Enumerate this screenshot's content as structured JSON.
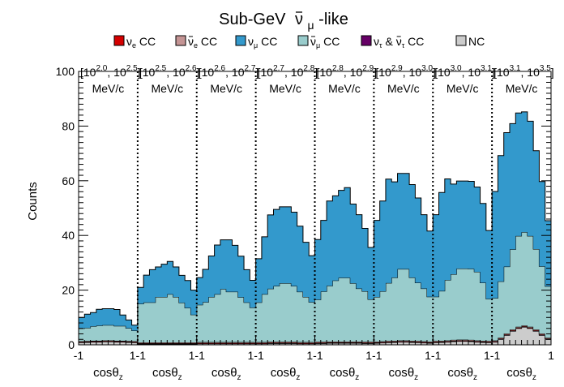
{
  "chart_data": {
    "type": "area",
    "title": {
      "base": "Sub-GeV",
      "nu": "ν",
      "sub": "μ",
      "suffix": "-like"
    },
    "ylabel": "Counts",
    "ylim": [
      0,
      100
    ],
    "y_ticks": [
      "0",
      "20",
      "40",
      "60",
      "80",
      "100"
    ],
    "legend_placement": "top",
    "legend": [
      {
        "name": "νe CC",
        "sym": "ν",
        "sub": "e",
        "bar": false,
        "color": "#d40000"
      },
      {
        "name": "ν̄e CC",
        "sym": "ν",
        "sub": "e",
        "bar": true,
        "color": "#c49494"
      },
      {
        "name": "νμ CC",
        "sym": "ν",
        "sub": "μ",
        "bar": false,
        "color": "#3399cc"
      },
      {
        "name": "ν̄μ CC",
        "sym": "ν",
        "sub": "μ",
        "bar": true,
        "color": "#99cccc"
      },
      {
        "name": "ντ & ν̄τ CC",
        "sym": "ν",
        "sub": "τ",
        "bar": false,
        "amp": "&",
        "color": "#660066"
      },
      {
        "name": "NC",
        "sym": "NC",
        "sub": "",
        "bar": false,
        "color": "#cccccc"
      }
    ],
    "panels": [
      {
        "range": "[10^2.0, 10^2.5]",
        "lo_base": "10",
        "lo_exp": "2.0",
        "hi_base": "10",
        "hi_exp": "2.5",
        "unit": "MeV/c"
      },
      {
        "range": "[10^2.5, 10^2.6]",
        "lo_base": "10",
        "lo_exp": "2.5",
        "hi_base": "10",
        "hi_exp": "2.6",
        "unit": "MeV/c"
      },
      {
        "range": "[10^2.6, 10^2.7]",
        "lo_base": "10",
        "lo_exp": "2.6",
        "hi_base": "10",
        "hi_exp": "2.7",
        "unit": "MeV/c"
      },
      {
        "range": "[10^2.7, 10^2.8]",
        "lo_base": "10",
        "lo_exp": "2.7",
        "hi_base": "10",
        "hi_exp": "2.8",
        "unit": "MeV/c"
      },
      {
        "range": "[10^2.8, 10^2.9]",
        "lo_base": "10",
        "lo_exp": "2.8",
        "hi_base": "10",
        "hi_exp": "2.9",
        "unit": "MeV/c"
      },
      {
        "range": "[10^2.9, 10^3.0]",
        "lo_base": "10",
        "lo_exp": "2.9",
        "hi_base": "10",
        "hi_exp": "3.0",
        "unit": "MeV/c"
      },
      {
        "range": "[10^3.0, 10^3.1]",
        "lo_base": "10",
        "lo_exp": "3.0",
        "hi_base": "10",
        "hi_exp": "3.1",
        "unit": "MeV/c"
      },
      {
        "range": "[10^3.1, 10^3.5]",
        "lo_base": "10",
        "lo_exp": "3.1",
        "hi_base": "10",
        "hi_exp": "3.5",
        "unit": "MeV/c"
      }
    ],
    "x_ticks": [
      "-1",
      "1-1",
      "1-1",
      "1-1",
      "1-1",
      "1-1",
      "1-1",
      "1-1",
      "1"
    ],
    "xlabel": {
      "text": "cos",
      "theta": "θ",
      "sub": "z"
    },
    "bins_per_panel": 10,
    "series": [
      {
        "name": "NC",
        "color": "#cccccc",
        "values": [
          [
            0.8,
            0.9,
            1.0,
            1.0,
            1.1,
            1.1,
            1.0,
            1.0,
            0.9,
            0.8
          ],
          [
            0.3,
            0.3,
            0.3,
            0.3,
            0.3,
            0.3,
            0.3,
            0.3,
            0.3,
            0.3
          ],
          [
            0.4,
            0.4,
            0.4,
            0.4,
            0.4,
            0.4,
            0.4,
            0.4,
            0.4,
            0.4
          ],
          [
            0.4,
            0.4,
            0.5,
            0.5,
            0.5,
            0.5,
            0.5,
            0.4,
            0.4,
            0.4
          ],
          [
            0.5,
            0.5,
            0.6,
            0.6,
            0.6,
            0.6,
            0.6,
            0.6,
            0.5,
            0.5
          ],
          [
            0.6,
            0.7,
            0.8,
            0.9,
            1.0,
            1.0,
            0.9,
            0.8,
            0.7,
            0.6
          ],
          [
            0.8,
            0.9,
            1.0,
            1.2,
            1.3,
            1.3,
            1.2,
            1.0,
            0.9,
            0.8
          ],
          [
            1.0,
            2.0,
            3.5,
            5.0,
            6.0,
            6.5,
            6.0,
            5.0,
            3.5,
            2.0
          ]
        ]
      },
      {
        "name": "ντ & ν̄τ CC",
        "color": "#660066",
        "values": [
          [
            0.1,
            0.1,
            0.1,
            0.1,
            0.1,
            0.1,
            0.1,
            0.1,
            0.1,
            0.1
          ],
          [
            0.1,
            0.1,
            0.1,
            0.1,
            0.1,
            0.1,
            0.1,
            0.1,
            0.1,
            0.1
          ],
          [
            0.1,
            0.1,
            0.1,
            0.1,
            0.1,
            0.1,
            0.1,
            0.1,
            0.1,
            0.1
          ],
          [
            0.1,
            0.1,
            0.1,
            0.1,
            0.1,
            0.1,
            0.1,
            0.1,
            0.1,
            0.1
          ],
          [
            0.1,
            0.1,
            0.1,
            0.1,
            0.1,
            0.1,
            0.1,
            0.1,
            0.1,
            0.1
          ],
          [
            0.1,
            0.1,
            0.1,
            0.1,
            0.1,
            0.1,
            0.1,
            0.1,
            0.1,
            0.1
          ],
          [
            0.1,
            0.1,
            0.1,
            0.1,
            0.1,
            0.1,
            0.1,
            0.1,
            0.1,
            0.1
          ],
          [
            0.1,
            0.1,
            0.1,
            0.1,
            0.1,
            0.1,
            0.1,
            0.1,
            0.1,
            0.1
          ]
        ]
      },
      {
        "name": "νe CC",
        "color": "#d40000",
        "values": [
          [
            0.2,
            0.2,
            0.2,
            0.2,
            0.2,
            0.2,
            0.2,
            0.2,
            0.2,
            0.2
          ],
          [
            0.2,
            0.2,
            0.2,
            0.2,
            0.2,
            0.2,
            0.2,
            0.2,
            0.2,
            0.2
          ],
          [
            0.2,
            0.2,
            0.2,
            0.2,
            0.2,
            0.2,
            0.2,
            0.2,
            0.2,
            0.2
          ],
          [
            0.2,
            0.2,
            0.2,
            0.2,
            0.2,
            0.2,
            0.2,
            0.2,
            0.2,
            0.2
          ],
          [
            0.2,
            0.2,
            0.2,
            0.2,
            0.2,
            0.2,
            0.2,
            0.2,
            0.2,
            0.2
          ],
          [
            0.2,
            0.2,
            0.2,
            0.2,
            0.2,
            0.2,
            0.2,
            0.2,
            0.2,
            0.2
          ],
          [
            0.2,
            0.2,
            0.2,
            0.2,
            0.2,
            0.2,
            0.2,
            0.2,
            0.2,
            0.2
          ],
          [
            0.2,
            0.2,
            0.2,
            0.2,
            0.2,
            0.2,
            0.2,
            0.2,
            0.2,
            0.2
          ]
        ]
      },
      {
        "name": "ν̄e CC",
        "color": "#c49494",
        "values": [
          [
            0.2,
            0.2,
            0.2,
            0.2,
            0.2,
            0.2,
            0.2,
            0.2,
            0.2,
            0.2
          ],
          [
            0.3,
            0.3,
            0.3,
            0.3,
            0.3,
            0.3,
            0.3,
            0.3,
            0.3,
            0.3
          ],
          [
            0.3,
            0.3,
            0.3,
            0.3,
            0.3,
            0.3,
            0.3,
            0.3,
            0.3,
            0.3
          ],
          [
            0.3,
            0.3,
            0.3,
            0.3,
            0.3,
            0.3,
            0.3,
            0.3,
            0.3,
            0.3
          ],
          [
            0.3,
            0.3,
            0.3,
            0.3,
            0.3,
            0.3,
            0.3,
            0.3,
            0.3,
            0.3
          ],
          [
            0.3,
            0.3,
            0.3,
            0.3,
            0.3,
            0.3,
            0.3,
            0.3,
            0.3,
            0.3
          ],
          [
            0.3,
            0.3,
            0.3,
            0.3,
            0.3,
            0.3,
            0.3,
            0.3,
            0.3,
            0.3
          ],
          [
            0.3,
            0.3,
            0.3,
            0.3,
            0.3,
            0.3,
            0.3,
            0.3,
            0.3,
            0.3
          ]
        ]
      },
      {
        "name": "ν̄μ CC",
        "color": "#99cccc",
        "values": [
          [
            4.7,
            4.8,
            5.3,
            5.5,
            5.6,
            5.6,
            5.4,
            5.4,
            4.7,
            3.9
          ],
          [
            14.1,
            14.6,
            14.6,
            16.6,
            16.6,
            17.6,
            16.6,
            14.5,
            12.6,
            10.1
          ],
          [
            13.6,
            14.6,
            16.5,
            17.5,
            19.4,
            18.4,
            18.4,
            16.4,
            14.5,
            12.6
          ],
          [
            14.5,
            17.5,
            19.4,
            20.4,
            21.4,
            21.4,
            20.4,
            18.4,
            16.5,
            14.6
          ],
          [
            15.4,
            18.4,
            20.4,
            22.3,
            23.3,
            23.3,
            21.3,
            19.4,
            18.5,
            15.5
          ],
          [
            16.3,
            18.3,
            21.2,
            23.1,
            26.1,
            26.1,
            23.1,
            21.3,
            19.3,
            16.4
          ],
          [
            16.2,
            18.2,
            22.1,
            24.0,
            26.0,
            26.0,
            26.0,
            25.1,
            21.2,
            15.4
          ],
          [
            15.5,
            20.6,
            24.5,
            29.3,
            33.2,
            34.1,
            33.2,
            29.4,
            24.6,
            18.8
          ]
        ]
      },
      {
        "name": "νμ CC",
        "color": "#3399cc",
        "values": [
          [
            4,
            5,
            5,
            6,
            6,
            6,
            6,
            4,
            3,
            2
          ],
          [
            6,
            10,
            12,
            11,
            12,
            12,
            11,
            10,
            10,
            9
          ],
          [
            10,
            12,
            15,
            18,
            18,
            19,
            17,
            15,
            12,
            10
          ],
          [
            16,
            21,
            27,
            28,
            28,
            28,
            27,
            24,
            20,
            17
          ],
          [
            22,
            26,
            31,
            31,
            32,
            33,
            29,
            27,
            23,
            19
          ],
          [
            28,
            33,
            38,
            35,
            35,
            35,
            34,
            31,
            27,
            24
          ],
          [
            30,
            36,
            37,
            33,
            32,
            32,
            32,
            31,
            29,
            25
          ],
          [
            39,
            46,
            49,
            46,
            45,
            44,
            42,
            36,
            31,
            24
          ]
        ]
      }
    ]
  }
}
